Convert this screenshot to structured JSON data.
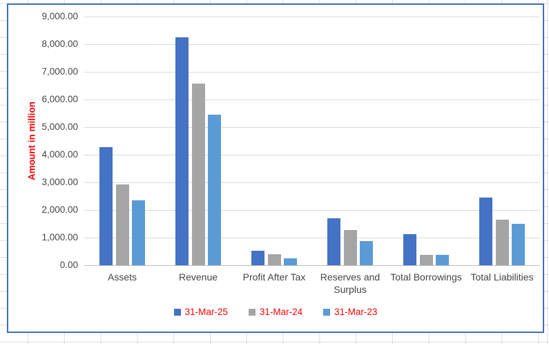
{
  "colors": {
    "chart_border": "#3e6fb8",
    "plot_gridline": "#d9d9d9",
    "axis_line": "#bfbfbf",
    "tick_text": "#444444",
    "y_axis_title_text": "#ff0000",
    "legend_text": "#ff0000",
    "sheet_gridline": "#dcdcdc"
  },
  "chart_data": {
    "type": "bar",
    "title": "",
    "xlabel": "",
    "ylabel": "Amount in million",
    "ylim": [
      0,
      9000
    ],
    "ytick_step": 1000,
    "ytick_labels": [
      "9,000.00",
      "8,000.00",
      "7,000.00",
      "6,000.00",
      "5,000.00",
      "4,000.00",
      "3,000.00",
      "2,000.00",
      "1,000.00",
      "0.00"
    ],
    "grid": true,
    "legend_position": "bottom",
    "categories": [
      "Assets",
      "Revenue",
      "Profit After Tax",
      "Reserves and Surplus",
      "Total Borrowings",
      "Total Liabilities"
    ],
    "series": [
      {
        "name": "31-Mar-25",
        "color": "#4472c4",
        "values": [
          4280,
          8240,
          525,
          1700,
          1130,
          2450
        ]
      },
      {
        "name": "31-Mar-24",
        "color": "#a5a5a5",
        "values": [
          2930,
          6580,
          400,
          1280,
          380,
          1650
        ]
      },
      {
        "name": "31-Mar-23",
        "color": "#5b9bd5",
        "values": [
          2360,
          5450,
          250,
          880,
          385,
          1500
        ]
      }
    ]
  }
}
